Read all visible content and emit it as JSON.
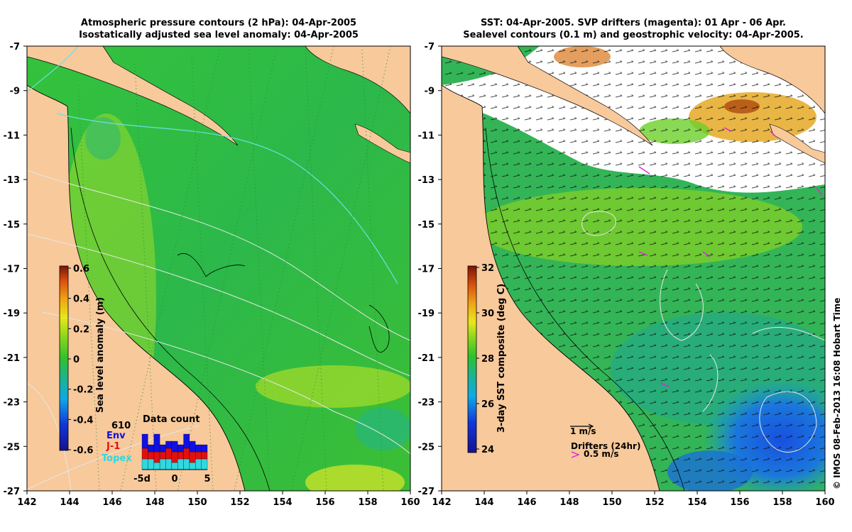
{
  "left_map": {
    "title_line1": "Atmospheric pressure contours (2 hPa): 04-Apr-2005",
    "title_line2": "Isostatically adjusted sea level anomaly: 04-Apr-2005",
    "colorbar_label": "Sea level anomaly (m)",
    "colorbar_ticks": [
      "0.6",
      "0.4",
      "0.2",
      "0",
      "-0.2",
      "-0.4",
      "-0.6"
    ],
    "data_count": {
      "title": "Data count",
      "total": "610",
      "env_label": "Env",
      "j1_label": "J-1",
      "topex_label": "Topex",
      "x_ticks": [
        "-5d",
        "0",
        "5"
      ],
      "series": {
        "topex": [
          3,
          3,
          2,
          3,
          3,
          2,
          3,
          3,
          2,
          3,
          3
        ],
        "j1": [
          3,
          2,
          3,
          2,
          3,
          3,
          2,
          3,
          3,
          2,
          2
        ],
        "env": [
          4,
          2,
          5,
          2,
          2,
          3,
          2,
          4,
          3,
          2,
          2
        ]
      }
    }
  },
  "right_map": {
    "title_line1": "SST: 04-Apr-2005. SVP drifters (magenta): 01 Apr - 06 Apr.",
    "title_line2": "Sealevel contours (0.1 m) and geostrophic velocity: 04-Apr-2005.",
    "colorbar_label": "3-day SST composite (deg C)",
    "colorbar_ticks": [
      "32",
      "30",
      "28",
      "26",
      "24"
    ],
    "vector_scale_label": "1 m/s",
    "drifter_title": "Drifters (24hr)",
    "drifter_scale_label": "0.5 m/s"
  },
  "axes": {
    "lon_ticks": [
      "142",
      "144",
      "146",
      "148",
      "150",
      "152",
      "154",
      "156",
      "158",
      "160"
    ],
    "lat_ticks": [
      "-7",
      "-9",
      "-11",
      "-13",
      "-15",
      "-17",
      "-19",
      "-21",
      "-23",
      "-25",
      "-27"
    ]
  },
  "copyright": "© IMOS 08-Feb-2013 16:08 Hobart Time",
  "colors": {
    "land": "#f7c99b",
    "sea_base": "#3ec13a",
    "cloud": "#ffffff",
    "pressure_contour": "#dcdcdc",
    "drifter": "#e020e0"
  }
}
